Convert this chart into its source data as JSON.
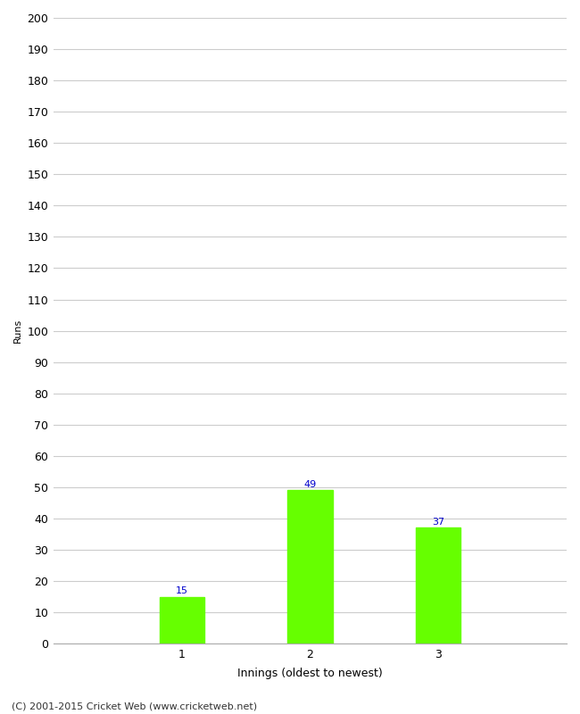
{
  "categories": [
    "1",
    "2",
    "3"
  ],
  "values": [
    15,
    49,
    37
  ],
  "bar_color": "#66ff00",
  "bar_edgecolor": "#66ff00",
  "label_color": "#0000cc",
  "ylabel": "Runs",
  "xlabel": "Innings (oldest to newest)",
  "ylim": [
    0,
    200
  ],
  "yticks": [
    0,
    10,
    20,
    30,
    40,
    50,
    60,
    70,
    80,
    90,
    100,
    110,
    120,
    130,
    140,
    150,
    160,
    170,
    180,
    190,
    200
  ],
  "footer": "(C) 2001-2015 Cricket Web (www.cricketweb.net)",
  "background_color": "#ffffff",
  "grid_color": "#cccccc",
  "label_fontsize": 8,
  "tick_fontsize": 9,
  "ylabel_fontsize": 8,
  "xlabel_fontsize": 9,
  "footer_fontsize": 8,
  "bar_width": 0.35,
  "figsize": [
    6.5,
    8.0
  ],
  "dpi": 100
}
